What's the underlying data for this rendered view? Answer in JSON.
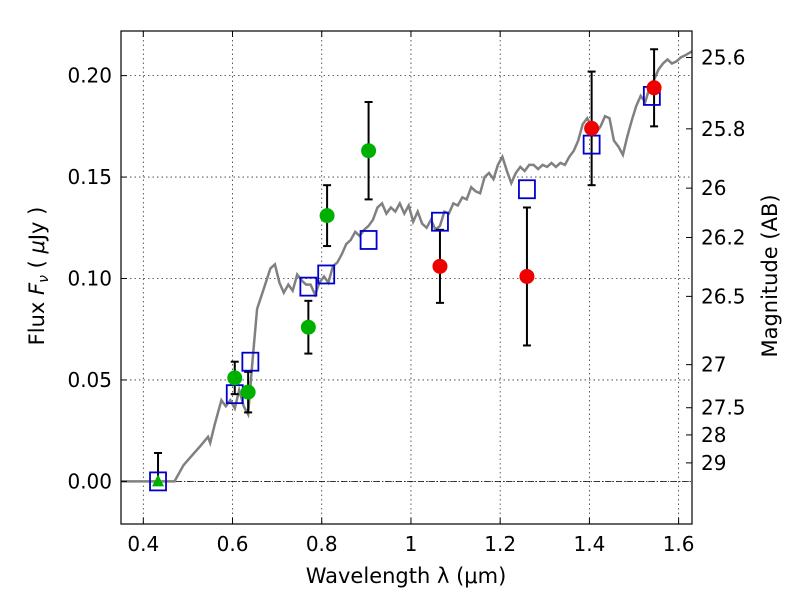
{
  "chart_data": {
    "type": "scatter",
    "xlabel": "Wavelength  λ (μm)",
    "ylabel": "Flux  F_ν  ( μJy )",
    "y2label": "Magnitude (AB)",
    "xlim": [
      0.35,
      1.63
    ],
    "ylim": [
      -0.021,
      0.222
    ],
    "grid": true,
    "x_ticks": [
      {
        "value": 0.4,
        "label": "0.4"
      },
      {
        "value": 0.6,
        "label": "0.6"
      },
      {
        "value": 0.8,
        "label": "0.8"
      },
      {
        "value": 1.0,
        "label": "1"
      },
      {
        "value": 1.2,
        "label": "1.2"
      },
      {
        "value": 1.4,
        "label": "1.4"
      },
      {
        "value": 1.6,
        "label": "1.6"
      }
    ],
    "y_ticks": [
      {
        "value": 0.0,
        "label": "0.00"
      },
      {
        "value": 0.05,
        "label": "0.05"
      },
      {
        "value": 0.1,
        "label": "0.10"
      },
      {
        "value": 0.15,
        "label": "0.15"
      },
      {
        "value": 0.2,
        "label": "0.20"
      }
    ],
    "y2_ticks": [
      {
        "value": 25.6,
        "label": "25.6"
      },
      {
        "value": 25.8,
        "label": "25.8"
      },
      {
        "value": 26.0,
        "label": "26"
      },
      {
        "value": 26.2,
        "label": "26.2"
      },
      {
        "value": 26.5,
        "label": "26.5"
      },
      {
        "value": 27.0,
        "label": "27"
      },
      {
        "value": 27.5,
        "label": "27.5"
      },
      {
        "value": 28.0,
        "label": "28"
      },
      {
        "value": 29.0,
        "label": "29"
      }
    ],
    "colors": {
      "spectrum": "#808080",
      "model": "#0000cc",
      "green": "#00b000",
      "red": "#ee0000",
      "error": "#000000"
    },
    "spectrum": [
      [
        0.35,
        0.0
      ],
      [
        0.47,
        0.0
      ],
      [
        0.49,
        0.008
      ],
      [
        0.51,
        0.013
      ],
      [
        0.53,
        0.018
      ],
      [
        0.545,
        0.022
      ],
      [
        0.55,
        0.019
      ],
      [
        0.56,
        0.028
      ],
      [
        0.575,
        0.04
      ],
      [
        0.585,
        0.037
      ],
      [
        0.595,
        0.04
      ],
      [
        0.605,
        0.036
      ],
      [
        0.615,
        0.045
      ],
      [
        0.625,
        0.037
      ],
      [
        0.635,
        0.033
      ],
      [
        0.645,
        0.06
      ],
      [
        0.655,
        0.085
      ],
      [
        0.67,
        0.095
      ],
      [
        0.685,
        0.105
      ],
      [
        0.695,
        0.107
      ],
      [
        0.705,
        0.098
      ],
      [
        0.715,
        0.093
      ],
      [
        0.725,
        0.097
      ],
      [
        0.735,
        0.094
      ],
      [
        0.745,
        0.102
      ],
      [
        0.755,
        0.099
      ],
      [
        0.765,
        0.097
      ],
      [
        0.775,
        0.097
      ],
      [
        0.785,
        0.092
      ],
      [
        0.795,
        0.098
      ],
      [
        0.805,
        0.101
      ],
      [
        0.815,
        0.098
      ],
      [
        0.825,
        0.106
      ],
      [
        0.835,
        0.108
      ],
      [
        0.845,
        0.112
      ],
      [
        0.855,
        0.117
      ],
      [
        0.865,
        0.119
      ],
      [
        0.875,
        0.123
      ],
      [
        0.885,
        0.121
      ],
      [
        0.895,
        0.124
      ],
      [
        0.905,
        0.126
      ],
      [
        0.915,
        0.129
      ],
      [
        0.925,
        0.135
      ],
      [
        0.935,
        0.137
      ],
      [
        0.945,
        0.132
      ],
      [
        0.955,
        0.135
      ],
      [
        0.965,
        0.133
      ],
      [
        0.975,
        0.137
      ],
      [
        0.985,
        0.132
      ],
      [
        0.995,
        0.136
      ],
      [
        1.005,
        0.128
      ],
      [
        1.015,
        0.133
      ],
      [
        1.025,
        0.127
      ],
      [
        1.035,
        0.125
      ],
      [
        1.045,
        0.129
      ],
      [
        1.055,
        0.124
      ],
      [
        1.065,
        0.126
      ],
      [
        1.075,
        0.133
      ],
      [
        1.085,
        0.132
      ],
      [
        1.095,
        0.137
      ],
      [
        1.105,
        0.136
      ],
      [
        1.115,
        0.14
      ],
      [
        1.125,
        0.139
      ],
      [
        1.135,
        0.145
      ],
      [
        1.145,
        0.143
      ],
      [
        1.155,
        0.142
      ],
      [
        1.165,
        0.15
      ],
      [
        1.175,
        0.152
      ],
      [
        1.185,
        0.149
      ],
      [
        1.195,
        0.156
      ],
      [
        1.205,
        0.16
      ],
      [
        1.215,
        0.153
      ],
      [
        1.225,
        0.147
      ],
      [
        1.235,
        0.152
      ],
      [
        1.245,
        0.155
      ],
      [
        1.255,
        0.153
      ],
      [
        1.265,
        0.156
      ],
      [
        1.275,
        0.156
      ],
      [
        1.285,
        0.154
      ],
      [
        1.295,
        0.156
      ],
      [
        1.305,
        0.155
      ],
      [
        1.315,
        0.157
      ],
      [
        1.325,
        0.155
      ],
      [
        1.335,
        0.157
      ],
      [
        1.345,
        0.156
      ],
      [
        1.355,
        0.16
      ],
      [
        1.365,
        0.163
      ],
      [
        1.375,
        0.168
      ],
      [
        1.385,
        0.176
      ],
      [
        1.395,
        0.179
      ],
      [
        1.405,
        0.175
      ],
      [
        1.415,
        0.172
      ],
      [
        1.425,
        0.175
      ],
      [
        1.435,
        0.18
      ],
      [
        1.445,
        0.179
      ],
      [
        1.455,
        0.168
      ],
      [
        1.465,
        0.165
      ],
      [
        1.475,
        0.161
      ],
      [
        1.485,
        0.17
      ],
      [
        1.495,
        0.178
      ],
      [
        1.505,
        0.185
      ],
      [
        1.515,
        0.19
      ],
      [
        1.525,
        0.187
      ],
      [
        1.535,
        0.194
      ],
      [
        1.545,
        0.198
      ],
      [
        1.555,
        0.203
      ],
      [
        1.565,
        0.206
      ],
      [
        1.575,
        0.208
      ],
      [
        1.585,
        0.206
      ],
      [
        1.595,
        0.207
      ],
      [
        1.605,
        0.209
      ],
      [
        1.615,
        0.21
      ],
      [
        1.63,
        0.212
      ]
    ],
    "model_points": [
      [
        0.433,
        0.0
      ],
      [
        0.605,
        0.043
      ],
      [
        0.64,
        0.059
      ],
      [
        0.77,
        0.096
      ],
      [
        0.81,
        0.102
      ],
      [
        0.905,
        0.119
      ],
      [
        1.065,
        0.128
      ],
      [
        1.26,
        0.144
      ],
      [
        1.405,
        0.166
      ],
      [
        1.54,
        0.19
      ]
    ],
    "green_triangle": [
      [
        0.433,
        0.0,
        0.014,
        0.0
      ]
    ],
    "green_points": [
      [
        0.605,
        0.051,
        0.008,
        0.008
      ],
      [
        0.635,
        0.044,
        0.01,
        0.01
      ],
      [
        0.77,
        0.076,
        0.013,
        0.013
      ],
      [
        0.812,
        0.131,
        0.015,
        0.015
      ],
      [
        0.905,
        0.163,
        0.024,
        0.024
      ]
    ],
    "red_points": [
      [
        1.065,
        0.106,
        0.018,
        0.018
      ],
      [
        1.26,
        0.101,
        0.034,
        0.034
      ],
      [
        1.405,
        0.174,
        0.028,
        0.028
      ],
      [
        1.545,
        0.194,
        0.019,
        0.019
      ]
    ]
  }
}
